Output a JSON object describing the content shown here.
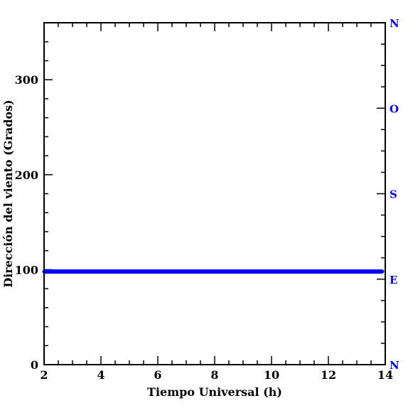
{
  "chart_data": {
    "type": "line",
    "xlabel": "Tiempo Universal (h)",
    "ylabel": "Dirección del viento (Grados)",
    "xlim": [
      2,
      14
    ],
    "ylim": [
      0,
      360
    ],
    "x_ticks": [
      2,
      4,
      6,
      8,
      10,
      12,
      14
    ],
    "y_ticks": [
      0,
      100,
      200,
      300
    ],
    "right_axis": {
      "color": "#0000ff",
      "ticks": [
        {
          "label": "N",
          "value": 0
        },
        {
          "label": "E",
          "value": 90
        },
        {
          "label": "S",
          "value": 180
        },
        {
          "label": "O",
          "value": 270
        },
        {
          "label": "N",
          "value": 360
        }
      ]
    },
    "series": [
      {
        "color": "#0000ff",
        "x": [
          2.0,
          2.5,
          3.0,
          3.5,
          4.0,
          4.5,
          5.0,
          5.5,
          6.0,
          6.5,
          7.0,
          7.5,
          8.0,
          8.5,
          9.0,
          9.5,
          10.0,
          10.5,
          11.0,
          11.5,
          12.0,
          12.5,
          13.0,
          13.5,
          13.9
        ],
        "values": [
          98,
          98,
          98,
          98,
          98,
          98,
          98,
          98,
          98,
          98,
          98,
          98,
          98,
          98,
          98,
          98,
          98,
          98,
          98,
          98,
          98,
          98,
          98,
          98,
          98
        ]
      }
    ],
    "grid": false,
    "legend": "none"
  }
}
